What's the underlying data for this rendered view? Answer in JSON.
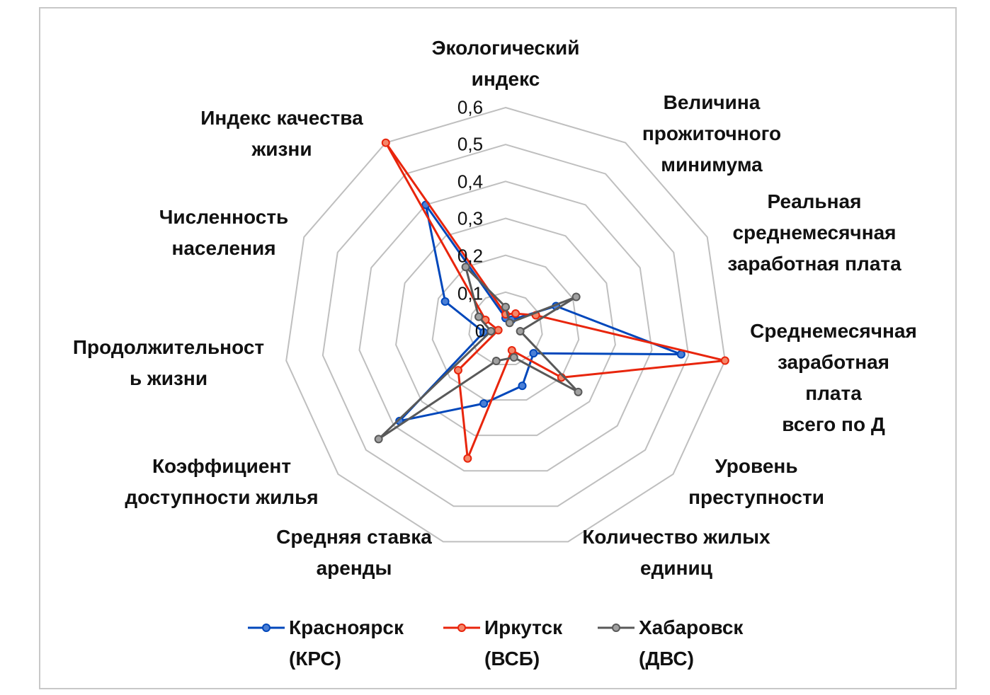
{
  "chart_data": {
    "type": "radar",
    "axes": [
      "Экологический\nиндекс",
      "Величина\nпрожиточного\nминимума",
      "Реальная\nсреднемесячная\nзаработная плата",
      "Среднемесячная\nзаработная плата\nвсего по Д",
      "Уровень\nпреступности",
      "Количество жилых\nединиц",
      "Средняя ставка\nаренды",
      "Коэффициент\nдоступности жилья",
      "Продолжительност\nь жизни",
      "Численность\nнаселения",
      "Индекс качества\nжизни"
    ],
    "r_ticks": [
      "0",
      "0,1",
      "0,2",
      "0,3",
      "0,4",
      "0,5",
      "0,6"
    ],
    "r_range": [
      0,
      0.6
    ],
    "series": [
      {
        "name": "Красноярск\n(КРС)",
        "color": "#0047BB",
        "marker": "#4a7fd6",
        "values": [
          0.03,
          0.03,
          0.15,
          0.48,
          0.1,
          0.16,
          0.21,
          0.38,
          0.06,
          0.18,
          0.4
        ]
      },
      {
        "name": "Иркутск\n(ВСБ)",
        "color": "#E8250C",
        "marker": "#F4876A",
        "values": [
          0.04,
          0.05,
          0.09,
          0.6,
          0.2,
          0.06,
          0.365,
          0.17,
          0.02,
          0.06,
          0.6
        ]
      },
      {
        "name": "Хабаровск\n(ДВС)",
        "color": "#595959",
        "marker": "#A0A0A0",
        "values": [
          0.06,
          0.02,
          0.21,
          0.04,
          0.26,
          0.08,
          0.09,
          0.455,
          0.04,
          0.08,
          0.2
        ]
      }
    ],
    "legend": "bottom",
    "grid": true
  }
}
